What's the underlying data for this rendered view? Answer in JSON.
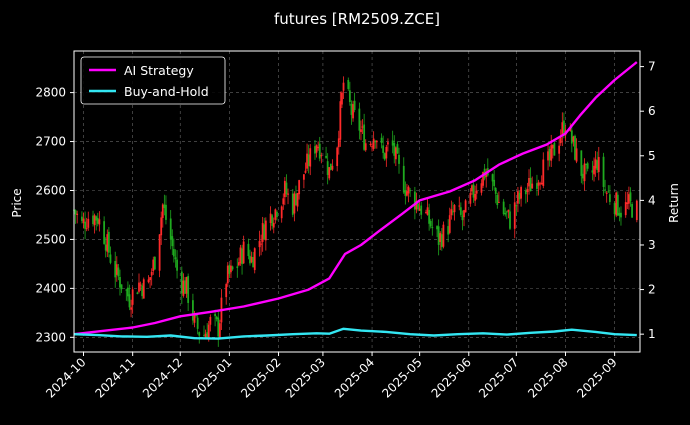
{
  "chart_data": {
    "type": "line",
    "title": "futures [RM2509.ZCE]",
    "ylabel_left": "Price",
    "ylabel_right": "Return",
    "xlabel": "",
    "grid": true,
    "legend_position": "top-left",
    "x_ticks": [
      "2024-10",
      "2024-11",
      "2024-12",
      "2025-01",
      "2025-02",
      "2025-03",
      "2025-04",
      "2025-05",
      "2025-06",
      "2025-07",
      "2025-08",
      "2025-09"
    ],
    "price_axis": {
      "ylim": [
        2270,
        2885
      ],
      "ticks": [
        2300,
        2400,
        2500,
        2600,
        2700,
        2800
      ]
    },
    "return_axis": {
      "ylim": [
        0.6,
        7.35
      ],
      "ticks": [
        1,
        2,
        3,
        4,
        5,
        6,
        7
      ]
    },
    "x_range": [
      "2024-09-25",
      "2025-09-17"
    ],
    "candles": {
      "up_color": "#ff2a2a",
      "down_color": "#1faa1f",
      "close_points": [
        [
          "2024-09-25",
          2560
        ],
        [
          "2024-09-30",
          2530
        ],
        [
          "2024-10-05",
          2550
        ],
        [
          "2024-10-10",
          2545
        ],
        [
          "2024-10-15",
          2500
        ],
        [
          "2024-10-20",
          2440
        ],
        [
          "2024-10-25",
          2410
        ],
        [
          "2024-10-30",
          2380
        ],
        [
          "2024-11-05",
          2410
        ],
        [
          "2024-11-10",
          2400
        ],
        [
          "2024-11-15",
          2460
        ],
        [
          "2024-11-20",
          2570
        ],
        [
          "2024-11-25",
          2500
        ],
        [
          "2024-11-30",
          2420
        ],
        [
          "2024-12-05",
          2400
        ],
        [
          "2024-12-10",
          2330
        ],
        [
          "2024-12-15",
          2300
        ],
        [
          "2024-12-20",
          2330
        ],
        [
          "2024-12-25",
          2320
        ],
        [
          "2024-12-30",
          2420
        ],
        [
          "2025-01-05",
          2440
        ],
        [
          "2025-01-10",
          2480
        ],
        [
          "2025-01-15",
          2460
        ],
        [
          "2025-01-20",
          2500
        ],
        [
          "2025-01-25",
          2540
        ],
        [
          "2025-01-30",
          2560
        ],
        [
          "2025-02-05",
          2600
        ],
        [
          "2025-02-10",
          2570
        ],
        [
          "2025-02-15",
          2620
        ],
        [
          "2025-02-20",
          2660
        ],
        [
          "2025-02-25",
          2700
        ],
        [
          "2025-03-01",
          2680
        ],
        [
          "2025-03-05",
          2640
        ],
        [
          "2025-03-10",
          2700
        ],
        [
          "2025-03-14",
          2820
        ],
        [
          "2025-03-19",
          2760
        ],
        [
          "2025-03-24",
          2730
        ],
        [
          "2025-03-29",
          2690
        ],
        [
          "2025-04-03",
          2720
        ],
        [
          "2025-04-08",
          2670
        ],
        [
          "2025-04-13",
          2700
        ],
        [
          "2025-04-18",
          2640
        ],
        [
          "2025-04-23",
          2600
        ],
        [
          "2025-04-28",
          2580
        ],
        [
          "2025-05-03",
          2560
        ],
        [
          "2025-05-08",
          2530
        ],
        [
          "2025-05-13",
          2500
        ],
        [
          "2025-05-18",
          2520
        ],
        [
          "2025-05-23",
          2560
        ],
        [
          "2025-05-28",
          2540
        ],
        [
          "2025-06-02",
          2580
        ],
        [
          "2025-06-07",
          2620
        ],
        [
          "2025-06-12",
          2640
        ],
        [
          "2025-06-17",
          2600
        ],
        [
          "2025-06-22",
          2560
        ],
        [
          "2025-06-27",
          2540
        ],
        [
          "2025-07-02",
          2580
        ],
        [
          "2025-07-07",
          2600
        ],
        [
          "2025-07-12",
          2620
        ],
        [
          "2025-07-17",
          2640
        ],
        [
          "2025-07-22",
          2660
        ],
        [
          "2025-07-27",
          2700
        ],
        [
          "2025-08-01",
          2740
        ],
        [
          "2025-08-06",
          2690
        ],
        [
          "2025-08-11",
          2640
        ],
        [
          "2025-08-16",
          2620
        ],
        [
          "2025-08-21",
          2660
        ],
        [
          "2025-08-26",
          2600
        ],
        [
          "2025-08-31",
          2580
        ],
        [
          "2025-09-05",
          2560
        ],
        [
          "2025-09-10",
          2570
        ],
        [
          "2025-09-15",
          2560
        ]
      ]
    },
    "series": [
      {
        "name": "AI Strategy",
        "color": "#ff00ff",
        "axis": "return",
        "points": [
          [
            "2024-09-25",
            1.0
          ],
          [
            "2024-10-15",
            1.08
          ],
          [
            "2024-11-01",
            1.15
          ],
          [
            "2024-11-15",
            1.25
          ],
          [
            "2024-12-01",
            1.4
          ],
          [
            "2024-12-20",
            1.5
          ],
          [
            "2025-01-10",
            1.62
          ],
          [
            "2025-02-01",
            1.8
          ],
          [
            "2025-02-20",
            2.0
          ],
          [
            "2025-03-05",
            2.25
          ],
          [
            "2025-03-15",
            2.8
          ],
          [
            "2025-03-25",
            3.0
          ],
          [
            "2025-04-05",
            3.3
          ],
          [
            "2025-04-20",
            3.7
          ],
          [
            "2025-05-01",
            4.0
          ],
          [
            "2025-05-20",
            4.2
          ],
          [
            "2025-06-05",
            4.45
          ],
          [
            "2025-06-20",
            4.8
          ],
          [
            "2025-07-05",
            5.05
          ],
          [
            "2025-07-20",
            5.25
          ],
          [
            "2025-08-01",
            5.5
          ],
          [
            "2025-08-10",
            5.9
          ],
          [
            "2025-08-20",
            6.3
          ],
          [
            "2025-09-01",
            6.7
          ],
          [
            "2025-09-15",
            7.1
          ]
        ]
      },
      {
        "name": "Buy-and-Hold",
        "color": "#33e6f2",
        "axis": "return",
        "points": [
          [
            "2024-09-25",
            1.0
          ],
          [
            "2024-10-10",
            0.98
          ],
          [
            "2024-10-25",
            0.95
          ],
          [
            "2024-11-10",
            0.94
          ],
          [
            "2024-11-25",
            0.97
          ],
          [
            "2024-12-10",
            0.91
          ],
          [
            "2024-12-25",
            0.9
          ],
          [
            "2025-01-10",
            0.95
          ],
          [
            "2025-01-25",
            0.97
          ],
          [
            "2025-02-10",
            1.0
          ],
          [
            "2025-02-25",
            1.02
          ],
          [
            "2025-03-05",
            1.01
          ],
          [
            "2025-03-14",
            1.12
          ],
          [
            "2025-03-25",
            1.08
          ],
          [
            "2025-04-10",
            1.05
          ],
          [
            "2025-04-25",
            1.0
          ],
          [
            "2025-05-10",
            0.97
          ],
          [
            "2025-05-25",
            1.0
          ],
          [
            "2025-06-10",
            1.02
          ],
          [
            "2025-06-25",
            0.99
          ],
          [
            "2025-07-10",
            1.03
          ],
          [
            "2025-07-25",
            1.06
          ],
          [
            "2025-08-05",
            1.1
          ],
          [
            "2025-08-20",
            1.05
          ],
          [
            "2025-09-01",
            1.0
          ],
          [
            "2025-09-15",
            0.98
          ]
        ]
      }
    ]
  }
}
